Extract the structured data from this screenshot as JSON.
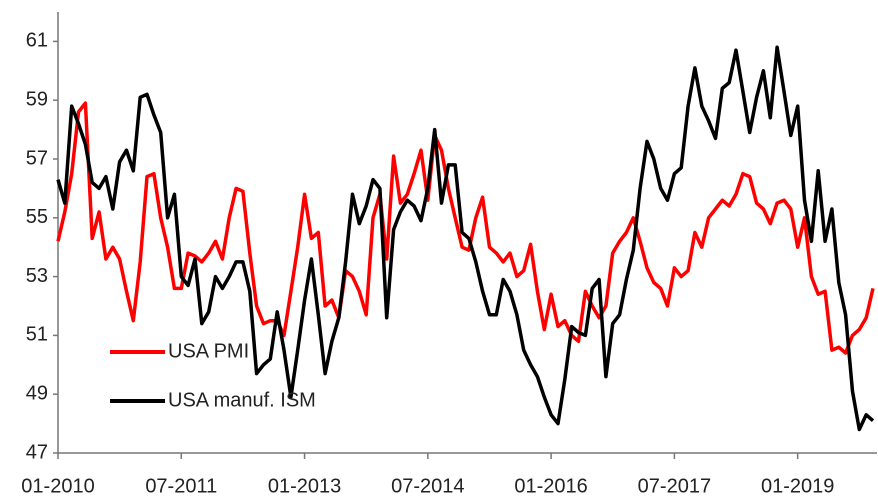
{
  "chart_data": {
    "type": "line",
    "categories": [
      "01-2010",
      null,
      null,
      null,
      null,
      null,
      null,
      null,
      null,
      null,
      null,
      null,
      null,
      null,
      null,
      null,
      null,
      null,
      "07-2011",
      null,
      null,
      null,
      null,
      null,
      null,
      null,
      null,
      null,
      null,
      null,
      null,
      null,
      null,
      null,
      null,
      null,
      "01-2013",
      null,
      null,
      null,
      null,
      null,
      null,
      null,
      null,
      null,
      null,
      null,
      null,
      null,
      null,
      null,
      null,
      null,
      "07-2014",
      null,
      null,
      null,
      null,
      null,
      null,
      null,
      null,
      null,
      null,
      null,
      null,
      null,
      null,
      null,
      null,
      null,
      "01-2016",
      null,
      null,
      null,
      null,
      null,
      null,
      null,
      null,
      null,
      null,
      null,
      null,
      null,
      null,
      null,
      null,
      null,
      "07-2017",
      null,
      null,
      null,
      null,
      null,
      null,
      null,
      null,
      null,
      null,
      null,
      null,
      null,
      null,
      null,
      null,
      null,
      "01-2019",
      null,
      null,
      null,
      null,
      null,
      null,
      null,
      null,
      null,
      null,
      null
    ],
    "series": [
      {
        "name": "USA PMI",
        "color": "#ff0000",
        "values": [
          54.2,
          55.2,
          56.5,
          58.6,
          58.9,
          54.3,
          55.2,
          53.6,
          54.0,
          53.6,
          52.5,
          51.5,
          53.5,
          56.4,
          56.5,
          55.0,
          54.0,
          52.6,
          52.6,
          53.8,
          53.7,
          53.5,
          53.8,
          54.2,
          53.6,
          55.0,
          56.0,
          55.9,
          53.8,
          52.0,
          51.4,
          51.5,
          51.5,
          51.0,
          52.5,
          54.0,
          55.8,
          54.3,
          54.5,
          52.0,
          52.2,
          51.6,
          53.2,
          53.0,
          52.5,
          51.7,
          55.0,
          55.8,
          53.6,
          57.1,
          55.5,
          55.8,
          56.5,
          57.3,
          55.6,
          57.8,
          57.3,
          56.0,
          55.0,
          54.0,
          53.9,
          55.0,
          55.7,
          54.0,
          53.8,
          53.5,
          53.8,
          53.0,
          53.2,
          54.1,
          52.5,
          51.2,
          52.4,
          51.3,
          51.5,
          51.0,
          50.8,
          52.5,
          52.0,
          51.6,
          52.0,
          53.8,
          54.2,
          54.5,
          55.0,
          54.2,
          53.3,
          52.8,
          52.6,
          52.0,
          53.3,
          53.0,
          53.2,
          54.5,
          54.0,
          55.0,
          55.3,
          55.6,
          55.4,
          55.8,
          56.5,
          56.4,
          55.5,
          55.3,
          54.8,
          55.5,
          55.6,
          55.3,
          54.0,
          55.0,
          53.0,
          52.4,
          52.5,
          50.5,
          50.6,
          50.4,
          51.0,
          51.2,
          51.6,
          52.6
        ]
      },
      {
        "name": "USA manuf. ISM",
        "color": "#000000",
        "values": [
          56.3,
          55.5,
          58.8,
          58.2,
          57.5,
          56.2,
          56.0,
          56.4,
          55.3,
          56.9,
          57.3,
          56.6,
          59.1,
          59.2,
          58.5,
          57.9,
          55.0,
          55.8,
          53.0,
          52.7,
          53.6,
          51.4,
          51.8,
          53.0,
          52.6,
          53.0,
          53.5,
          53.5,
          52.5,
          49.7,
          50.0,
          50.2,
          51.8,
          50.5,
          48.9,
          50.5,
          52.2,
          53.6,
          51.7,
          49.7,
          50.8,
          51.6,
          53.5,
          55.8,
          54.8,
          55.4,
          56.3,
          56.0,
          51.6,
          54.6,
          55.2,
          55.6,
          55.4,
          54.9,
          56.0,
          58.0,
          55.5,
          56.8,
          56.8,
          54.5,
          54.3,
          53.5,
          52.5,
          51.7,
          51.7,
          52.9,
          52.5,
          51.7,
          50.5,
          50.0,
          49.6,
          48.9,
          48.3,
          48.0,
          49.5,
          51.3,
          51.1,
          51.0,
          52.6,
          52.9,
          49.6,
          51.4,
          51.7,
          52.9,
          53.9,
          56.0,
          57.6,
          57.0,
          56.0,
          55.6,
          56.5,
          56.7,
          58.8,
          60.1,
          58.8,
          58.3,
          57.7,
          59.4,
          59.6,
          60.7,
          59.3,
          57.9,
          59.1,
          60.0,
          58.4,
          60.8,
          59.3,
          57.8,
          58.8,
          55.6,
          54.2,
          56.6,
          54.2,
          55.3,
          52.8,
          51.7,
          49.1,
          47.8,
          48.3,
          48.1
        ]
      }
    ],
    "ylim": [
      47,
      62
    ],
    "yticks": [
      47,
      49,
      51,
      53,
      55,
      57,
      59,
      61
    ],
    "grid": false
  }
}
